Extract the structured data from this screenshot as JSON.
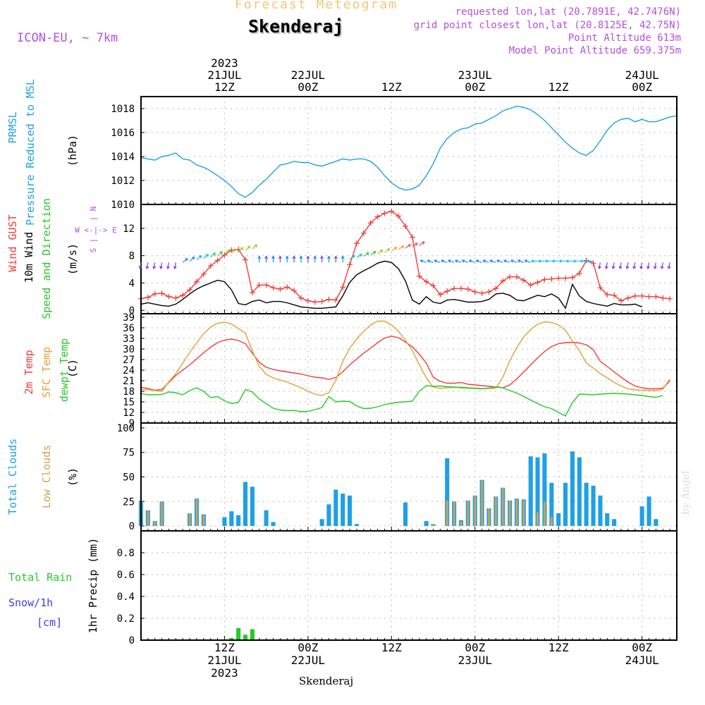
{
  "header": {
    "subtitle": "Forecast Meteogram",
    "location": "Skenderaj",
    "model": "ICON-EU, ~ 7km",
    "requested": "requested lon,lat (20.7891E, 42.7476N)",
    "gridpoint": "grid point closest lon,lat (20.8125E, 42.75N)",
    "altitude": "Point Altitude 613m",
    "model_altitude": "Model Point Altitude 659.375m",
    "footer_location": "Skenderaj",
    "credit": "by Angel"
  },
  "colors": {
    "pressure": "#1ea0e6",
    "gust": "#f03c3c",
    "wind": "#000000",
    "temp2m": "#f03c3c",
    "sfc": "#e6a032",
    "dew": "#28c828",
    "total_cloud": "#1ea0e6",
    "low_cloud": "#d2a050",
    "rain": "#28c828",
    "snow": "#3c3cf0",
    "dir_label": "#b450dc",
    "header_orange": "#f0c878",
    "header_purple": "#b450dc"
  },
  "time_axis": {
    "top_labels": [
      {
        "x_hour": 12,
        "lines": [
          "2023",
          "21JUL",
          "12Z"
        ]
      },
      {
        "x_hour": 24,
        "lines": [
          "22JUL",
          "00Z"
        ]
      },
      {
        "x_hour": 36,
        "lines": [
          "12Z"
        ]
      },
      {
        "x_hour": 48,
        "lines": [
          "23JUL",
          "00Z"
        ]
      },
      {
        "x_hour": 60,
        "lines": [
          "12Z"
        ]
      },
      {
        "x_hour": 72,
        "lines": [
          "24JUL",
          "00Z"
        ]
      }
    ],
    "bottom_labels": [
      {
        "x_hour": 12,
        "lines": [
          "12Z",
          "21JUL",
          "2023"
        ]
      },
      {
        "x_hour": 24,
        "lines": [
          "00Z",
          "22JUL"
        ]
      },
      {
        "x_hour": 36,
        "lines": [
          "12Z"
        ]
      },
      {
        "x_hour": 48,
        "lines": [
          "00Z",
          "23JUL"
        ]
      },
      {
        "x_hour": 60,
        "lines": [
          "12Z"
        ]
      },
      {
        "x_hour": 72,
        "lines": [
          "00Z",
          "24JUL"
        ]
      }
    ]
  },
  "chart_data": [
    {
      "type": "line",
      "panel": "pressure",
      "ylabel_lines": [
        "PRMSL",
        "Pressure Reduced to MSL"
      ],
      "unit": "(hPa)",
      "ylim": [
        1010,
        1019
      ],
      "yticks": [
        1010,
        1012,
        1014,
        1016,
        1018
      ],
      "x_start_hour": 0,
      "series": [
        {
          "name": "PRMSL",
          "values": [
            1013.9,
            1013.8,
            1013.7,
            1014.0,
            1014.1,
            1014.3,
            1013.8,
            1013.7,
            1013.3,
            1013.1,
            1012.8,
            1012.4,
            1012.0,
            1011.5,
            1010.9,
            1010.6,
            1011.0,
            1011.6,
            1012.1,
            1012.7,
            1013.3,
            1013.4,
            1013.6,
            1013.5,
            1013.5,
            1013.3,
            1013.2,
            1013.4,
            1013.6,
            1013.8,
            1013.7,
            1013.8,
            1013.8,
            1013.6,
            1013.1,
            1012.4,
            1011.8,
            1011.4,
            1011.2,
            1011.3,
            1011.6,
            1012.4,
            1013.4,
            1014.7,
            1015.5,
            1016.0,
            1016.3,
            1016.4,
            1016.7,
            1016.8,
            1017.1,
            1017.4,
            1017.8,
            1018.0,
            1018.2,
            1018.1,
            1017.9,
            1017.5,
            1017.0,
            1016.4,
            1015.8,
            1015.2,
            1014.7,
            1014.3,
            1014.1,
            1014.5,
            1015.3,
            1016.2,
            1016.8,
            1017.1,
            1017.2,
            1016.9,
            1017.1,
            1016.9,
            1016.9,
            1017.1,
            1017.3,
            1017.4
          ]
        }
      ]
    },
    {
      "type": "line",
      "panel": "wind",
      "ylabel_lines": [
        "Wind GUST",
        "10m Wind",
        "Speed and Direction"
      ],
      "unit": "(m/s)",
      "direction_legend": [
        "N",
        "|",
        "W <-|-> E",
        "|",
        "S"
      ],
      "ylim": [
        -0.5,
        15.5
      ],
      "yticks": [
        0,
        4,
        8,
        12
      ],
      "x_start_hour": 0,
      "series": [
        {
          "name": "Wind GUST",
          "values": [
            1.7,
            1.9,
            2.4,
            2.5,
            2.0,
            1.8,
            2.2,
            3.0,
            4.2,
            5.3,
            6.5,
            7.3,
            8.1,
            8.8,
            8.9,
            7.4,
            2.6,
            3.7,
            3.7,
            3.3,
            3.1,
            3.4,
            2.9,
            1.8,
            1.4,
            1.2,
            1.3,
            1.6,
            1.5,
            3.4,
            6.7,
            9.8,
            11.3,
            12.8,
            13.7,
            14.2,
            14.5,
            13.8,
            12.3,
            10.7,
            5.0,
            4.2,
            3.6,
            2.3,
            2.8,
            3.2,
            3.2,
            3.1,
            2.7,
            2.5,
            2.7,
            3.2,
            4.3,
            4.9,
            4.9,
            4.4,
            3.7,
            4.1,
            4.5,
            4.6,
            4.7,
            4.7,
            4.8,
            5.4,
            7.3,
            6.9,
            3.3,
            2.3,
            2.2,
            1.4,
            1.8,
            2.1,
            2.1,
            2.0,
            2.0,
            1.8,
            1.7
          ]
        },
        {
          "name": "10m Wind",
          "values": [
            0.9,
            1.1,
            0.9,
            0.7,
            0.6,
            0.9,
            1.6,
            2.4,
            3.1,
            3.6,
            4.0,
            4.4,
            4.2,
            3.0,
            1.0,
            0.8,
            1.3,
            1.5,
            1.1,
            1.3,
            1.3,
            1.1,
            0.8,
            0.5,
            0.4,
            0.3,
            0.3,
            0.4,
            0.5,
            2.1,
            4.1,
            5.2,
            5.8,
            6.3,
            6.9,
            7.2,
            7.0,
            6.1,
            4.3,
            1.5,
            0.9,
            2.0,
            1.2,
            1.0,
            1.5,
            1.6,
            1.4,
            1.2,
            1.2,
            1.3,
            1.6,
            2.4,
            2.5,
            2.2,
            1.5,
            1.4,
            1.8,
            2.2,
            2.0,
            2.4,
            1.8,
            0.3,
            3.8,
            2.1,
            1.3,
            1.0,
            0.8,
            0.6,
            1.0,
            0.8,
            0.8,
            0.9,
            0.5
          ]
        }
      ]
    },
    {
      "type": "line",
      "panel": "temperature",
      "ylabel_lines": [
        "2m Temp",
        "SFC Temp",
        "dewpt Temp"
      ],
      "unit": "(C)",
      "ylim": [
        9,
        40
      ],
      "yticks": [
        9,
        12,
        15,
        18,
        21,
        24,
        27,
        30,
        33,
        36,
        39
      ],
      "x_start_hour": 0,
      "series": [
        {
          "name": "2m Temp",
          "values": [
            19.2,
            18.8,
            18.3,
            18.5,
            20.5,
            22.5,
            24.0,
            25.5,
            27.2,
            28.9,
            30.5,
            31.8,
            32.5,
            32.8,
            32.4,
            31.5,
            28.8,
            26.2,
            24.8,
            24.2,
            23.8,
            23.5,
            23.2,
            22.9,
            22.4,
            22.0,
            21.8,
            21.4,
            21.9,
            23.5,
            25.5,
            27.2,
            28.8,
            30.2,
            31.8,
            33.1,
            33.6,
            33.2,
            32.0,
            30.6,
            28.5,
            26.0,
            22.0,
            20.8,
            20.3,
            20.3,
            20.5,
            20.0,
            19.8,
            19.6,
            19.4,
            19.2,
            19.0,
            19.8,
            21.5,
            23.5,
            25.5,
            27.5,
            29.3,
            30.7,
            31.5,
            31.8,
            31.9,
            31.7,
            31.2,
            29.8,
            26.5,
            25.0,
            23.5,
            22.0,
            20.6,
            19.5,
            19.0,
            18.7,
            18.7,
            18.9,
            20.9
          ]
        },
        {
          "name": "SFC Temp",
          "values": [
            18.6,
            18.5,
            18.2,
            18.0,
            20.7,
            23.0,
            26.0,
            29.0,
            31.7,
            34.3,
            36.2,
            37.3,
            37.6,
            37.1,
            35.8,
            34.5,
            29.5,
            25.0,
            22.8,
            21.8,
            21.2,
            20.6,
            19.8,
            19.0,
            18.0,
            17.2,
            16.8,
            17.6,
            21.2,
            26.5,
            30.2,
            32.9,
            35.0,
            36.8,
            37.9,
            37.9,
            36.8,
            35.0,
            32.5,
            29.5,
            25.5,
            21.8,
            19.2,
            18.8,
            19.0,
            19.1,
            19.2,
            19.0,
            18.9,
            18.8,
            18.8,
            18.9,
            22.0,
            26.7,
            30.4,
            33.4,
            35.5,
            37.0,
            37.7,
            37.5,
            36.8,
            35.3,
            32.3,
            29.5,
            26.0,
            24.6,
            23.0,
            21.8,
            20.5,
            19.5,
            18.7,
            18.4,
            18.3,
            18.2,
            18.2,
            18.6,
            21.5
          ]
        },
        {
          "name": "dewpt Temp",
          "values": [
            17.4,
            17.0,
            17.0,
            17.1,
            17.8,
            17.6,
            17.0,
            18.2,
            19.0,
            18.0,
            16.2,
            16.5,
            15.3,
            14.5,
            14.8,
            18.5,
            17.8,
            15.8,
            14.5,
            13.2,
            12.7,
            12.5,
            12.6,
            12.2,
            12.3,
            12.8,
            13.4,
            16.5,
            15.0,
            15.2,
            15.1,
            13.8,
            13.1,
            13.2,
            13.6,
            14.2,
            14.6,
            14.9,
            15.0,
            15.2,
            18.0,
            19.6,
            19.4,
            19.5,
            19.3,
            19.2,
            19.0,
            18.9,
            18.8,
            18.7,
            18.9,
            19.3,
            19.0,
            18.2,
            17.5,
            16.5,
            15.5,
            14.5,
            13.6,
            13.1,
            12.0,
            11.0,
            14.8,
            17.2,
            17.1,
            17.0,
            17.2,
            17.3,
            17.4,
            17.3,
            17.2,
            17.0,
            16.8,
            16.5,
            16.3,
            16.8
          ]
        }
      ]
    },
    {
      "type": "bar",
      "panel": "clouds",
      "ylabel_lines": [
        "Total Clouds",
        "Low Clouds"
      ],
      "unit": "(%)",
      "ylim": [
        -5,
        105
      ],
      "yticks": [
        0,
        25,
        50,
        75,
        100
      ],
      "x_start_hour": 0,
      "series": [
        {
          "name": "Total Clouds",
          "values": [
            26,
            16,
            5,
            25,
            0,
            0,
            0,
            13,
            28,
            12,
            0,
            0,
            9,
            15,
            11,
            45,
            40,
            0,
            16,
            4,
            0,
            0,
            0,
            0,
            0,
            0,
            7,
            22,
            37,
            33,
            31,
            2,
            0,
            0,
            0,
            0,
            0,
            0,
            24,
            0,
            0,
            5,
            2,
            0,
            69,
            25,
            6,
            26,
            31,
            47,
            18,
            30,
            39,
            26,
            28,
            27,
            71,
            70,
            74,
            44,
            13,
            44,
            76,
            70,
            44,
            41,
            31,
            13,
            7,
            0,
            0,
            0,
            20,
            30,
            7
          ]
        },
        {
          "name": "Low Clouds",
          "values": [
            26,
            16,
            5,
            25,
            0,
            0,
            0,
            13,
            28,
            12,
            0,
            0,
            0,
            0,
            0,
            0,
            0,
            0,
            0,
            0,
            0,
            0,
            0,
            0,
            0,
            0,
            0,
            0,
            0,
            0,
            0,
            0,
            0,
            0,
            0,
            0,
            0,
            0,
            0,
            0,
            0,
            0,
            2,
            0,
            26,
            25,
            5,
            26,
            31,
            47,
            18,
            30,
            39,
            26,
            28,
            26,
            0,
            14,
            25,
            9,
            0,
            0,
            0,
            0,
            0,
            0,
            0,
            0,
            0,
            0,
            0,
            0,
            0,
            0,
            0
          ]
        }
      ]
    },
    {
      "type": "bar",
      "panel": "precip",
      "ylabel_lines": [
        "Total Rain",
        "Snow/1h",
        "[cm]"
      ],
      "unit": "1hr Precip (mm)",
      "ylim": [
        0,
        1.0
      ],
      "yticks": [
        0,
        0.2,
        0.4,
        0.6,
        0.8
      ],
      "ytick_labels": [
        "0",
        "0.2",
        "0.4",
        "0.6",
        "0.8"
      ],
      "x_start_hour": 0,
      "series": [
        {
          "name": "Total Rain",
          "values": [
            0,
            0,
            0,
            0,
            0,
            0,
            0,
            0,
            0,
            0,
            0,
            0,
            0,
            0.02,
            0.11,
            0.05,
            0.1,
            0,
            0,
            0,
            0,
            0,
            0,
            0,
            0,
            0,
            0,
            0,
            0,
            0,
            0,
            0,
            0,
            0,
            0,
            0,
            0,
            0,
            0,
            0,
            0,
            0,
            0,
            0,
            0,
            0,
            0,
            0,
            0,
            0,
            0,
            0,
            0,
            0,
            0,
            0,
            0,
            0,
            0,
            0,
            0,
            0,
            0,
            0,
            0,
            0,
            0,
            0,
            0,
            0,
            0,
            0,
            0,
            0,
            0,
            0,
            0
          ]
        }
      ]
    }
  ]
}
